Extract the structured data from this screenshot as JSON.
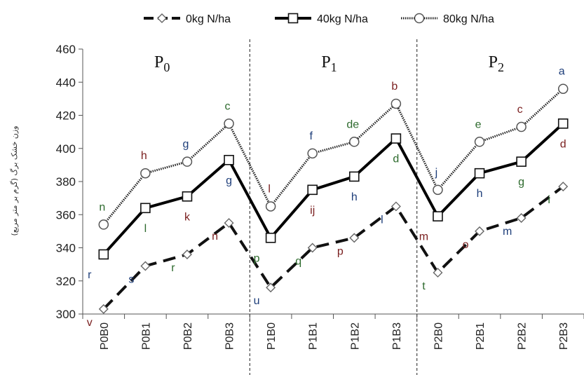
{
  "chart_data": {
    "type": "line",
    "ylabel": "وزن خشک برگ (گرم بر متر مربع)",
    "ylim": [
      300,
      460
    ],
    "yticks": [
      300,
      320,
      340,
      360,
      380,
      400,
      420,
      440,
      460
    ],
    "categories": [
      "P0B0",
      "P0B1",
      "P0B2",
      "P0B3",
      "P1B0",
      "P1B1",
      "P1B2",
      "P1B3",
      "P2B0",
      "P2B1",
      "P2B2",
      "P2B3"
    ],
    "groups": [
      {
        "label": "P",
        "sub": "0"
      },
      {
        "label": "P",
        "sub": "1"
      },
      {
        "label": "P",
        "sub": "2"
      }
    ],
    "legend_position": "top",
    "series": [
      {
        "name": "0kg N/ha",
        "marker": "diamond",
        "line": "dashed",
        "color": "#111111",
        "values": [
          303,
          329,
          336,
          355,
          316,
          340,
          346,
          365,
          325,
          350,
          358,
          377
        ],
        "letters": [
          "v",
          "s",
          "r",
          "n",
          "u",
          "q",
          "p",
          "l",
          "t",
          "o",
          "m",
          "i"
        ]
      },
      {
        "name": "40kg N/ha",
        "marker": "square",
        "line": "solid",
        "color": "#000000",
        "values": [
          336,
          364,
          371,
          393,
          346,
          375,
          383,
          406,
          359,
          385,
          392,
          415
        ],
        "letters": [
          "r",
          "l",
          "k",
          "g",
          "p",
          "ij",
          "h",
          "d",
          "m",
          "h",
          "g",
          "d"
        ]
      },
      {
        "name": "80kg N/ha",
        "marker": "circle",
        "line": "dotted",
        "color": "#222222",
        "values": [
          354,
          385,
          392,
          415,
          365,
          397,
          404,
          427,
          375,
          404,
          413,
          436
        ],
        "letters": [
          "n",
          "h",
          "g",
          "c",
          "l",
          "f",
          "de",
          "b",
          "j",
          "e",
          "c",
          "a"
        ]
      }
    ]
  }
}
